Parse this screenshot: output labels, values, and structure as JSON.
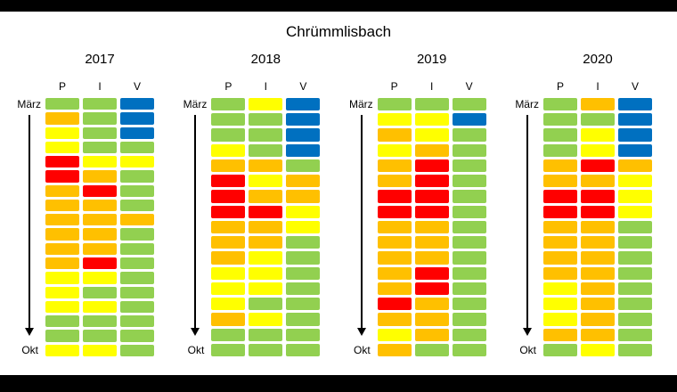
{
  "title": "Chrümmlisbach",
  "colors": {
    "blue": "#0070C0",
    "green": "#92D050",
    "yellow": "#FFFF00",
    "orange": "#FFC000",
    "red": "#FF0000"
  },
  "chart_data": {
    "type": "heatmap",
    "title": "Chrümmlisbach",
    "row_axis": {
      "start": "März",
      "end": "Okt",
      "direction": "down"
    },
    "columns": [
      "P",
      "I",
      "V"
    ],
    "value_scale": [
      "blue",
      "green",
      "yellow",
      "orange",
      "red"
    ],
    "panels": [
      {
        "year": "2017",
        "columns": [
          "P",
          "I",
          "V"
        ],
        "rows": [
          [
            "green",
            "green",
            "blue"
          ],
          [
            "orange",
            "green",
            "blue"
          ],
          [
            "yellow",
            "green",
            "blue"
          ],
          [
            "yellow",
            "green",
            "green"
          ],
          [
            "red",
            "yellow",
            "yellow"
          ],
          [
            "red",
            "orange",
            "green"
          ],
          [
            "orange",
            "red",
            "green"
          ],
          [
            "orange",
            "orange",
            "green"
          ],
          [
            "orange",
            "orange",
            "orange"
          ],
          [
            "orange",
            "orange",
            "green"
          ],
          [
            "orange",
            "orange",
            "green"
          ],
          [
            "orange",
            "red",
            "green"
          ],
          [
            "yellow",
            "yellow",
            "green"
          ],
          [
            "yellow",
            "green",
            "green"
          ],
          [
            "yellow",
            "yellow",
            "green"
          ],
          [
            "green",
            "green",
            "green"
          ],
          [
            "green",
            "green",
            "green"
          ],
          [
            "yellow",
            "yellow",
            "green"
          ]
        ]
      },
      {
        "year": "2018",
        "columns": [
          "P",
          "I",
          "V"
        ],
        "rows": [
          [
            "green",
            "yellow",
            "blue"
          ],
          [
            "green",
            "green",
            "blue"
          ],
          [
            "green",
            "green",
            "blue"
          ],
          [
            "yellow",
            "green",
            "blue"
          ],
          [
            "orange",
            "orange",
            "green"
          ],
          [
            "red",
            "yellow",
            "orange"
          ],
          [
            "red",
            "orange",
            "orange"
          ],
          [
            "red",
            "red",
            "yellow"
          ],
          [
            "orange",
            "orange",
            "yellow"
          ],
          [
            "orange",
            "orange",
            "green"
          ],
          [
            "orange",
            "yellow",
            "green"
          ],
          [
            "yellow",
            "yellow",
            "green"
          ],
          [
            "yellow",
            "yellow",
            "green"
          ],
          [
            "yellow",
            "green",
            "green"
          ],
          [
            "orange",
            "yellow",
            "green"
          ],
          [
            "green",
            "green",
            "green"
          ],
          [
            "green",
            "green",
            "green"
          ]
        ]
      },
      {
        "year": "2019",
        "columns": [
          "P",
          "I",
          "V"
        ],
        "rows": [
          [
            "green",
            "green",
            "green"
          ],
          [
            "yellow",
            "yellow",
            "blue"
          ],
          [
            "orange",
            "yellow",
            "green"
          ],
          [
            "yellow",
            "orange",
            "green"
          ],
          [
            "orange",
            "red",
            "green"
          ],
          [
            "orange",
            "red",
            "green"
          ],
          [
            "red",
            "red",
            "green"
          ],
          [
            "red",
            "red",
            "green"
          ],
          [
            "orange",
            "orange",
            "green"
          ],
          [
            "orange",
            "orange",
            "green"
          ],
          [
            "orange",
            "orange",
            "green"
          ],
          [
            "orange",
            "red",
            "green"
          ],
          [
            "orange",
            "red",
            "green"
          ],
          [
            "red",
            "orange",
            "green"
          ],
          [
            "orange",
            "orange",
            "green"
          ],
          [
            "yellow",
            "orange",
            "green"
          ],
          [
            "orange",
            "green",
            "green"
          ]
        ]
      },
      {
        "year": "2020",
        "columns": [
          "P",
          "I",
          "V"
        ],
        "rows": [
          [
            "green",
            "orange",
            "blue"
          ],
          [
            "green",
            "green",
            "blue"
          ],
          [
            "green",
            "yellow",
            "blue"
          ],
          [
            "green",
            "yellow",
            "blue"
          ],
          [
            "orange",
            "red",
            "orange"
          ],
          [
            "orange",
            "orange",
            "yellow"
          ],
          [
            "red",
            "red",
            "yellow"
          ],
          [
            "red",
            "red",
            "yellow"
          ],
          [
            "orange",
            "orange",
            "green"
          ],
          [
            "orange",
            "orange",
            "green"
          ],
          [
            "orange",
            "orange",
            "green"
          ],
          [
            "orange",
            "orange",
            "green"
          ],
          [
            "yellow",
            "orange",
            "green"
          ],
          [
            "yellow",
            "orange",
            "green"
          ],
          [
            "yellow",
            "orange",
            "green"
          ],
          [
            "orange",
            "orange",
            "green"
          ],
          [
            "green",
            "yellow",
            "green"
          ]
        ]
      }
    ]
  }
}
